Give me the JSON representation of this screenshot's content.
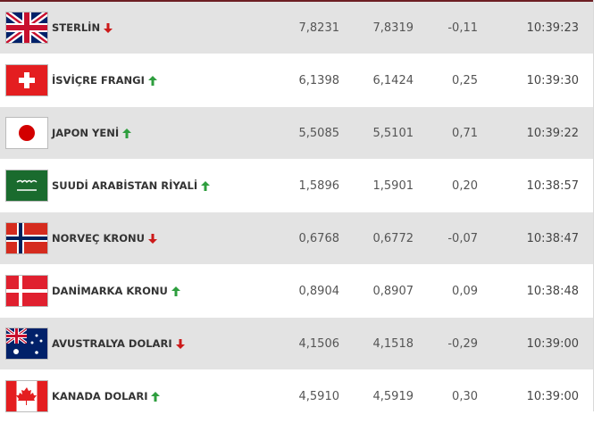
{
  "rows": [
    {
      "name": "STERLİN",
      "trend": "down",
      "buy": "7,8231",
      "sell": "7,8319",
      "change": "-0,11",
      "time": "10:39:23"
    },
    {
      "name": "İSVİÇRE FRANGI",
      "trend": "up",
      "buy": "6,1398",
      "sell": "6,1424",
      "change": "0,25",
      "time": "10:39:30"
    },
    {
      "name": "JAPON YENİ",
      "trend": "up",
      "buy": "5,5085",
      "sell": "5,5101",
      "change": "0,71",
      "time": "10:39:22"
    },
    {
      "name": "SUUDİ ARABİSTAN RİYALİ",
      "trend": "up",
      "buy": "1,5896",
      "sell": "1,5901",
      "change": "0,20",
      "time": "10:38:57"
    },
    {
      "name": "NORVEÇ KRONU",
      "trend": "down",
      "buy": "0,6768",
      "sell": "0,6772",
      "change": "-0,07",
      "time": "10:38:47"
    },
    {
      "name": "DANİMARKA KRONU",
      "trend": "up",
      "buy": "0,8904",
      "sell": "0,8907",
      "change": "0,09",
      "time": "10:38:48"
    },
    {
      "name": "AVUSTRALYA DOLARI",
      "trend": "down",
      "buy": "4,1506",
      "sell": "4,1518",
      "change": "-0,29",
      "time": "10:39:00"
    },
    {
      "name": "KANADA DOLARI",
      "trend": "up",
      "buy": "4,5910",
      "sell": "4,5919",
      "change": "0,30",
      "time": "10:39:00"
    }
  ]
}
